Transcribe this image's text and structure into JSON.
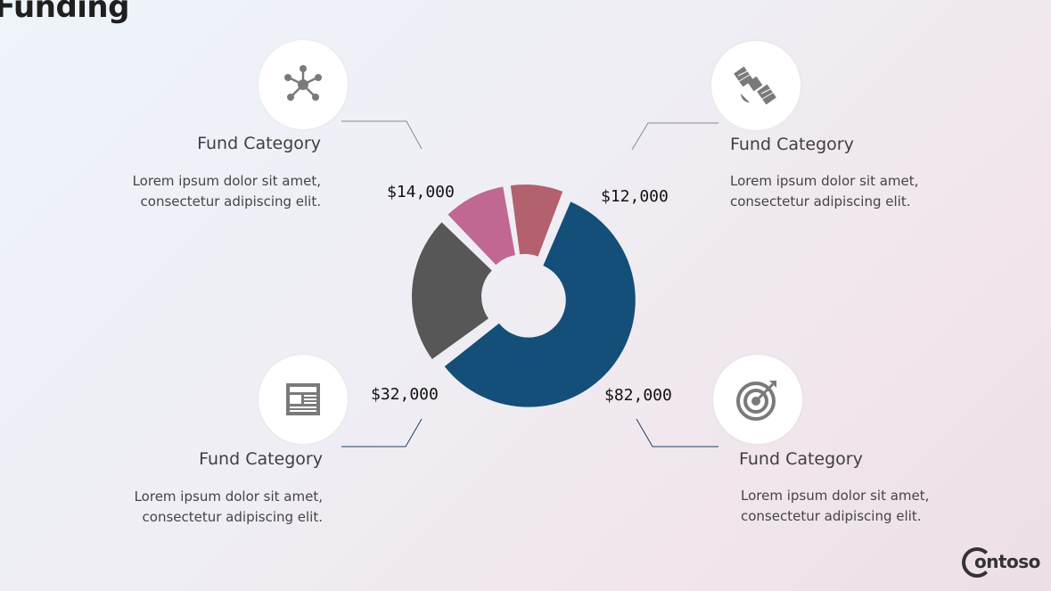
{
  "title": "Funding",
  "categories": [
    {
      "title": "Fund Category",
      "desc_line1": "Lorem ipsum dolor sit amet,",
      "desc_line2": "consectetur adipiscing elit.",
      "icon": "network-icon"
    },
    {
      "title": "Fund Category",
      "desc_line1": "Lorem ipsum dolor sit amet,",
      "desc_line2": "consectetur adipiscing elit.",
      "icon": "satellite-icon"
    },
    {
      "title": "Fund Category",
      "desc_line1": "Lorem ipsum dolor sit amet,",
      "desc_line2": "consectetur adipiscing elit.",
      "icon": "newspaper-icon"
    },
    {
      "title": "Fund Category",
      "desc_line1": "Lorem ipsum dolor sit amet,",
      "desc_line2": "consectetur adipiscing elit.",
      "icon": "target-icon"
    }
  ],
  "logo": {
    "text": "ontoso"
  },
  "chart_data": {
    "type": "pie",
    "variant": "donut",
    "categories": [
      "$82,000",
      "$32,000",
      "$14,000",
      "$12,000"
    ],
    "values": [
      82000,
      32000,
      14000,
      12000
    ],
    "colors": [
      "#134f78",
      "#575757",
      "#c06891",
      "#b3616e"
    ]
  }
}
